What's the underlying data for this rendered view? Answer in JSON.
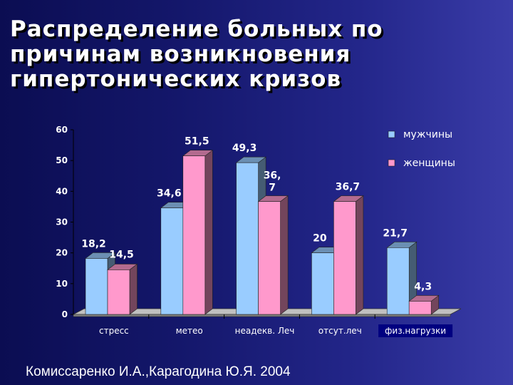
{
  "slide": {
    "title_lines": [
      "Распределение больных по",
      "причинам возникновения",
      "гипертонических кризов"
    ],
    "citation": "Комиссаренко И.А.,Карагодина Ю.Я. 2004"
  },
  "colors": {
    "background": "#1a1d75",
    "series_men": "#99ccff",
    "series_women": "#ff99cc",
    "highlight_label_bg": "#000080"
  },
  "chart_data": {
    "type": "bar",
    "categories": [
      "стресс",
      "метео",
      "неадекв. Леч",
      "отсут.леч",
      "физ.нагрузки"
    ],
    "series": [
      {
        "name": "мужчины",
        "values": [
          18.2,
          34.6,
          49.3,
          20,
          21.7
        ],
        "labels": [
          "18,2",
          "34,6",
          "49,3",
          "20",
          "21,7"
        ]
      },
      {
        "name": "женщины",
        "values": [
          14.5,
          51.5,
          36.7,
          36.7,
          4.3
        ],
        "labels": [
          "14,5",
          "51,5",
          "36,\n7",
          "36,7",
          "4,3"
        ]
      }
    ],
    "ylim": [
      0,
      60
    ],
    "yticks": [
      "0",
      "10",
      "20",
      "30",
      "40",
      "50",
      "60"
    ],
    "legend_position": "top-right",
    "highlighted_category": "физ.нагрузки"
  }
}
